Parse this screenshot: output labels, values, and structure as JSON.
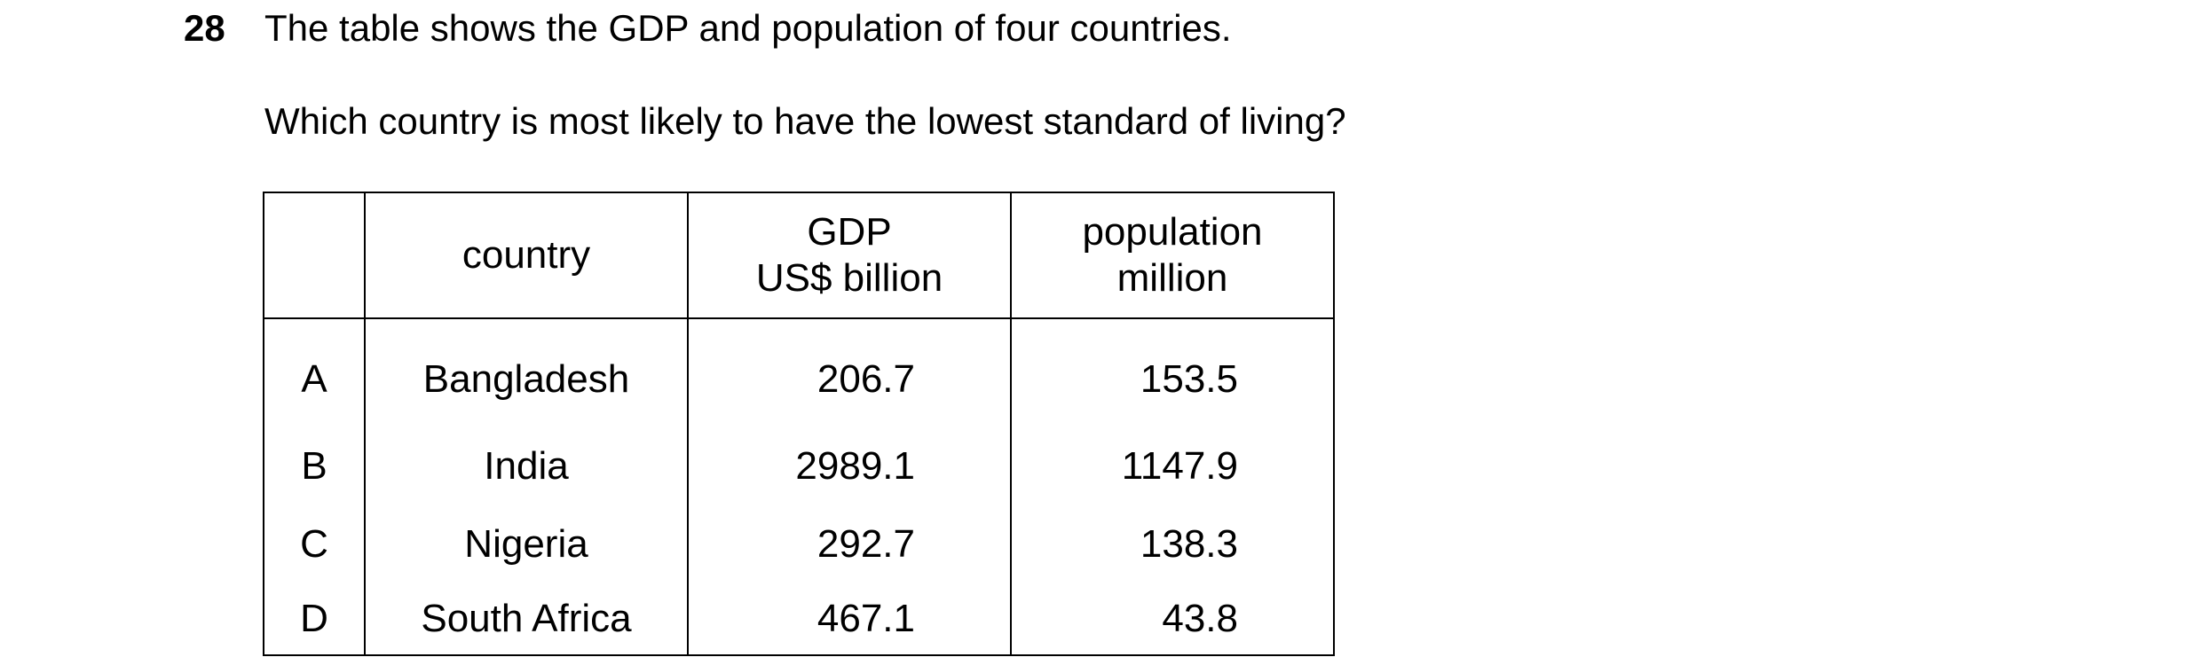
{
  "question": {
    "number": "28",
    "text": "The table shows the GDP and population of four countries.",
    "prompt": "Which country is most likely to have the lowest standard of living?"
  },
  "table": {
    "headers": {
      "letter": "",
      "country": "country",
      "gdp_line1": "GDP",
      "gdp_line2": "US$ billion",
      "population_line1": "population",
      "population_line2": "million"
    },
    "rows": [
      {
        "option": "A",
        "country": "Bangladesh",
        "gdp": "206.7",
        "population": "153.5"
      },
      {
        "option": "B",
        "country": "India",
        "gdp": "2989.1",
        "population": "1147.9"
      },
      {
        "option": "C",
        "country": "Nigeria",
        "gdp": "292.7",
        "population": "138.3"
      },
      {
        "option": "D",
        "country": "South Africa",
        "gdp": "467.1",
        "population": "43.8"
      }
    ]
  }
}
